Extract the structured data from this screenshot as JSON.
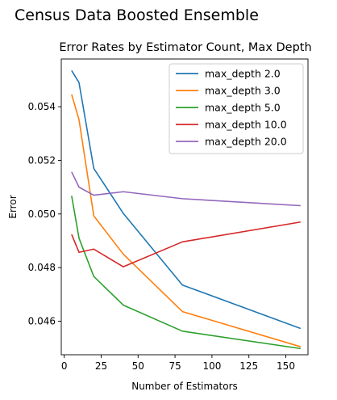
{
  "chart_data": {
    "type": "line",
    "suptitle": "Census Data Boosted Ensemble",
    "title": "Error Rates by Estimator Count, Max Depth",
    "xlabel": "Number of Estimators",
    "ylabel": "Error",
    "x": [
      5,
      10,
      20,
      40,
      80,
      160
    ],
    "xlim": [
      -2,
      165
    ],
    "ylim": [
      0.04475,
      0.05578
    ],
    "xticks": [
      0,
      25,
      50,
      75,
      100,
      125,
      150
    ],
    "yticks": [
      0.046,
      0.048,
      0.05,
      0.052,
      0.054
    ],
    "ytick_labels": [
      "0.046",
      "0.048",
      "0.050",
      "0.052",
      "0.054"
    ],
    "grid": false,
    "legend_position": "upper-right",
    "series": [
      {
        "name": "max_depth 2.0",
        "color": "#1f77b4",
        "values": [
          0.05535,
          0.0549,
          0.0517,
          0.05002,
          0.04735,
          0.04573
        ]
      },
      {
        "name": "max_depth 3.0",
        "color": "#ff7f0e",
        "values": [
          0.05446,
          0.05352,
          0.04993,
          0.0485,
          0.04636,
          0.04505
        ]
      },
      {
        "name": "max_depth 5.0",
        "color": "#2ca02c",
        "values": [
          0.05068,
          0.0491,
          0.04767,
          0.0466,
          0.04563,
          0.04498
        ]
      },
      {
        "name": "max_depth 10.0",
        "color": "#d62728",
        "values": [
          0.04924,
          0.04857,
          0.04869,
          0.04803,
          0.04896,
          0.0497
        ]
      },
      {
        "name": "max_depth 20.0",
        "color": "#9467bd",
        "values": [
          0.05157,
          0.051,
          0.0507,
          0.05083,
          0.05057,
          0.05031
        ]
      }
    ]
  }
}
